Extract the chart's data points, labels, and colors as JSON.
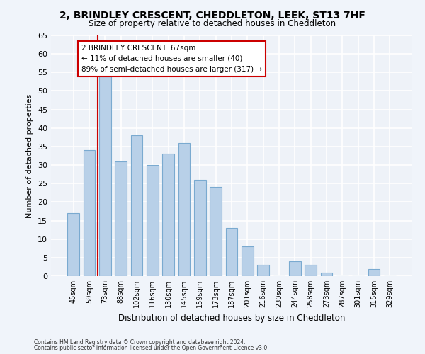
{
  "title1": "2, BRINDLEY CRESCENT, CHEDDLETON, LEEK, ST13 7HF",
  "title2": "Size of property relative to detached houses in Cheddleton",
  "xlabel": "Distribution of detached houses by size in Cheddleton",
  "ylabel": "Number of detached properties",
  "footer1": "Contains HM Land Registry data © Crown copyright and database right 2024.",
  "footer2": "Contains public sector information licensed under the Open Government Licence v3.0.",
  "categories": [
    "45sqm",
    "59sqm",
    "73sqm",
    "88sqm",
    "102sqm",
    "116sqm",
    "130sqm",
    "145sqm",
    "159sqm",
    "173sqm",
    "187sqm",
    "201sqm",
    "216sqm",
    "230sqm",
    "244sqm",
    "258sqm",
    "273sqm",
    "287sqm",
    "301sqm",
    "315sqm",
    "329sqm"
  ],
  "values": [
    17,
    34,
    54,
    31,
    38,
    30,
    33,
    36,
    26,
    24,
    13,
    8,
    3,
    0,
    4,
    3,
    1,
    0,
    0,
    2,
    0
  ],
  "bar_color": "#b8d0e8",
  "bar_edge_color": "#7aaad0",
  "bg_color": "#eef2f8",
  "grid_color": "#ffffff",
  "annotation_line1": "2 BRINDLEY CRESCENT: 67sqm",
  "annotation_line2": "← 11% of detached houses are smaller (40)",
  "annotation_line3": "89% of semi-detached houses are larger (317) →",
  "annotation_box_color": "#ffffff",
  "annotation_box_edge": "#cc0000",
  "vline_color": "#cc0000",
  "ylim": [
    0,
    65
  ],
  "yticks": [
    0,
    5,
    10,
    15,
    20,
    25,
    30,
    35,
    40,
    45,
    50,
    55,
    60,
    65
  ]
}
